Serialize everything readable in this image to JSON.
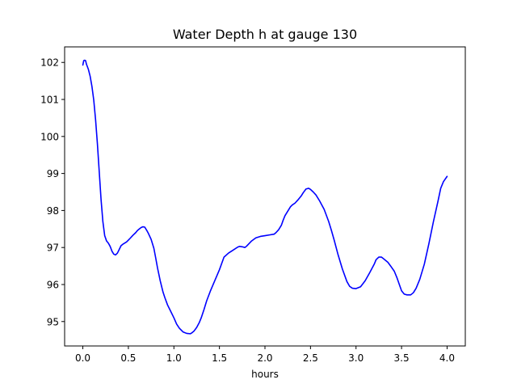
{
  "chart_data": {
    "type": "line",
    "title": "Water Depth h at gauge 130",
    "xlabel": "hours",
    "ylabel": "",
    "xlim": [
      -0.2,
      4.2
    ],
    "ylim": [
      94.34,
      102.42
    ],
    "xticks": [
      0.0,
      0.5,
      1.0,
      1.5,
      2.0,
      2.5,
      3.0,
      3.5,
      4.0
    ],
    "xtick_labels": [
      "0.0",
      "0.5",
      "1.0",
      "1.5",
      "2.0",
      "2.5",
      "3.0",
      "3.5",
      "4.0"
    ],
    "yticks": [
      95,
      96,
      97,
      98,
      99,
      100,
      101,
      102
    ],
    "ytick_labels": [
      "95",
      "96",
      "97",
      "98",
      "99",
      "100",
      "101",
      "102"
    ],
    "grid": false,
    "line_color": "#0000ff",
    "series": [
      {
        "x": [
          0.0,
          0.01,
          0.02,
          0.03,
          0.04,
          0.06,
          0.08,
          0.1,
          0.12,
          0.14,
          0.16,
          0.18,
          0.2,
          0.22,
          0.24,
          0.26,
          0.28,
          0.3,
          0.32,
          0.34,
          0.36,
          0.38,
          0.4,
          0.42,
          0.44,
          0.46,
          0.48,
          0.5,
          0.52,
          0.55,
          0.58,
          0.6,
          0.62,
          0.64,
          0.66,
          0.68,
          0.7,
          0.72,
          0.75,
          0.78,
          0.8,
          0.82,
          0.85,
          0.88,
          0.9,
          0.93,
          0.96,
          1.0,
          1.03,
          1.06,
          1.1,
          1.14,
          1.18,
          1.2,
          1.22,
          1.25,
          1.28,
          1.3,
          1.33,
          1.36,
          1.4,
          1.45,
          1.5,
          1.55,
          1.6,
          1.65,
          1.7,
          1.72,
          1.75,
          1.78,
          1.8,
          1.85,
          1.9,
          1.95,
          2.0,
          2.05,
          2.1,
          2.12,
          2.15,
          2.18,
          2.2,
          2.22,
          2.25,
          2.28,
          2.3,
          2.33,
          2.36,
          2.4,
          2.42,
          2.45,
          2.48,
          2.5,
          2.53,
          2.56,
          2.6,
          2.65,
          2.7,
          2.73,
          2.76,
          2.8,
          2.85,
          2.9,
          2.93,
          2.96,
          3.0,
          3.05,
          3.1,
          3.15,
          3.2,
          3.22,
          3.25,
          3.28,
          3.3,
          3.35,
          3.38,
          3.42,
          3.45,
          3.48,
          3.5,
          3.53,
          3.56,
          3.6,
          3.63,
          3.66,
          3.7,
          3.75,
          3.8,
          3.85,
          3.9,
          3.93,
          3.96,
          4.0
        ],
        "y": [
          101.93,
          102.05,
          102.06,
          102.05,
          101.95,
          101.82,
          101.63,
          101.35,
          100.98,
          100.45,
          99.8,
          99.05,
          98.3,
          97.7,
          97.32,
          97.18,
          97.12,
          97.03,
          96.9,
          96.82,
          96.8,
          96.85,
          96.95,
          97.05,
          97.09,
          97.12,
          97.15,
          97.2,
          97.25,
          97.33,
          97.4,
          97.46,
          97.5,
          97.54,
          97.56,
          97.55,
          97.47,
          97.38,
          97.22,
          96.98,
          96.72,
          96.45,
          96.1,
          95.8,
          95.65,
          95.45,
          95.3,
          95.1,
          94.93,
          94.82,
          94.72,
          94.68,
          94.67,
          94.7,
          94.74,
          94.84,
          94.98,
          95.1,
          95.32,
          95.56,
          95.82,
          96.11,
          96.4,
          96.74,
          96.85,
          96.93,
          97.01,
          97.03,
          97.02,
          97.0,
          97.04,
          97.17,
          97.26,
          97.3,
          97.32,
          97.34,
          97.36,
          97.4,
          97.48,
          97.6,
          97.74,
          97.86,
          97.98,
          98.1,
          98.15,
          98.2,
          98.28,
          98.4,
          98.48,
          98.58,
          98.6,
          98.57,
          98.5,
          98.42,
          98.26,
          98.03,
          97.7,
          97.46,
          97.2,
          96.83,
          96.42,
          96.08,
          95.95,
          95.9,
          95.89,
          95.94,
          96.1,
          96.32,
          96.55,
          96.67,
          96.74,
          96.74,
          96.7,
          96.6,
          96.5,
          96.36,
          96.18,
          95.97,
          95.83,
          95.74,
          95.72,
          95.72,
          95.78,
          95.9,
          96.14,
          96.55,
          97.1,
          97.7,
          98.25,
          98.6,
          98.78,
          98.92
        ]
      }
    ]
  }
}
